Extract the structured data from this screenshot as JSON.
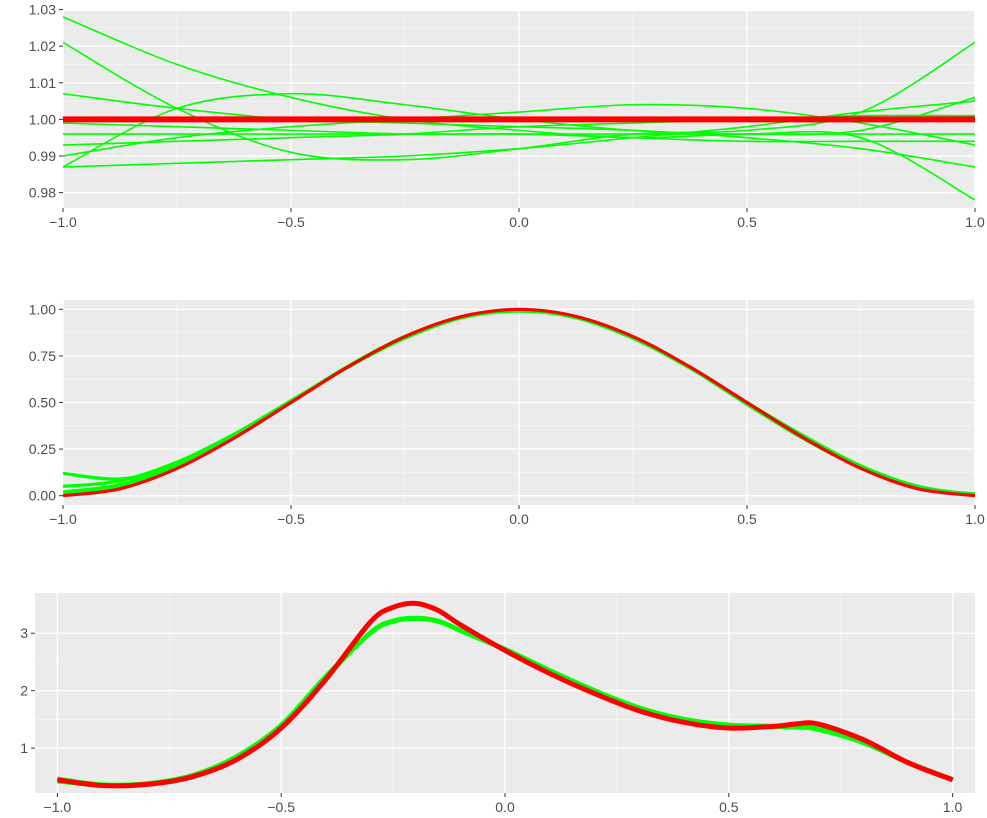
{
  "colors": {
    "panel_background": "#ebebeb",
    "grid_major": "#ffffff",
    "grid_minor": "#f5f5f5",
    "tick_text": "#4d4d4d",
    "tick_mark": "#333333",
    "truth": "#ff0000",
    "estimate": "#00ff00"
  },
  "chart_data": [
    {
      "type": "line",
      "title": "",
      "xlabel": "",
      "ylabel": "",
      "xlim": [
        -1.0,
        1.0
      ],
      "ylim": [
        0.9758,
        1.0296
      ],
      "x_ticks": [
        -1.0,
        -0.5,
        0.0,
        0.5,
        1.0
      ],
      "x_tick_labels": [
        "−1.0",
        "−0.5",
        "0.0",
        "0.5",
        "1.0"
      ],
      "y_ticks": [
        0.98,
        0.99,
        1.0,
        1.01,
        1.02,
        1.03
      ],
      "y_tick_labels": [
        "0.98",
        "0.99",
        "1.00",
        "1.01",
        "1.02",
        "1.03"
      ],
      "legend": "none",
      "series": [
        {
          "role": "truth",
          "x": [
            -1.0,
            1.0
          ],
          "y": [
            1.0,
            1.0
          ]
        },
        {
          "role": "estimate",
          "x": [
            -1.0,
            -0.75,
            -0.5,
            -0.25,
            0.0,
            0.25,
            0.5,
            0.75,
            1.0
          ],
          "y": [
            1.028,
            1.015,
            1.006,
            1.0,
            0.997,
            0.995,
            0.996,
            0.995,
            0.978
          ]
        },
        {
          "role": "estimate",
          "x": [
            -1.0,
            -0.75,
            -0.5,
            -0.25,
            0.0,
            0.25,
            0.5,
            0.75,
            1.0
          ],
          "y": [
            1.021,
            1.003,
            0.991,
            0.989,
            0.992,
            0.996,
            0.997,
            1.002,
            1.021
          ]
        },
        {
          "role": "estimate",
          "x": [
            -1.0,
            -0.75,
            -0.5,
            -0.25,
            0.0,
            0.25,
            0.5,
            0.75,
            1.0
          ],
          "y": [
            1.007,
            1.003,
            1.0,
            0.999,
            0.998,
            0.997,
            0.995,
            0.992,
            0.987
          ]
        },
        {
          "role": "estimate",
          "x": [
            -1.0,
            -0.75,
            -0.5,
            -0.25,
            0.0,
            0.25,
            0.5,
            0.75,
            1.0
          ],
          "y": [
            0.987,
            1.003,
            1.007,
            1.004,
            1.0,
            0.997,
            0.996,
            0.997,
            1.006
          ]
        },
        {
          "role": "estimate",
          "x": [
            -1.0,
            -0.75,
            -0.5,
            -0.25,
            0.0,
            0.25,
            0.5,
            0.75,
            1.0
          ],
          "y": [
            0.987,
            0.988,
            0.989,
            0.99,
            0.992,
            0.995,
            0.998,
            1.002,
            1.005
          ]
        },
        {
          "role": "estimate",
          "x": [
            -1.0,
            -0.75,
            -0.5,
            -0.25,
            0.0,
            0.25,
            0.5,
            0.75,
            1.0
          ],
          "y": [
            0.99,
            0.995,
            0.998,
            1.0,
            1.002,
            1.004,
            1.003,
            0.999,
            0.993
          ]
        },
        {
          "role": "estimate",
          "x": [
            -1.0,
            -0.75,
            -0.5,
            -0.25,
            0.0,
            0.25,
            0.5,
            0.75,
            1.0
          ],
          "y": [
            0.993,
            0.994,
            0.995,
            0.996,
            0.998,
            0.999,
            1.0,
            1.001,
            1.001
          ]
        },
        {
          "role": "estimate",
          "x": [
            -1.0,
            -0.75,
            -0.5,
            -0.25,
            0.0,
            0.25,
            0.5,
            0.75,
            1.0
          ],
          "y": [
            0.996,
            0.996,
            0.996,
            0.996,
            0.996,
            0.996,
            0.996,
            0.996,
            0.996
          ]
        },
        {
          "role": "estimate",
          "x": [
            -1.0,
            -0.75,
            -0.5,
            -0.25,
            0.0,
            0.25,
            0.5,
            0.75,
            1.0
          ],
          "y": [
            0.999,
            0.998,
            0.997,
            0.996,
            0.996,
            0.995,
            0.994,
            0.994,
            0.994
          ]
        }
      ]
    },
    {
      "type": "line",
      "title": "",
      "xlabel": "",
      "ylabel": "",
      "xlim": [
        -1.0,
        1.0
      ],
      "ylim": [
        -0.05,
        1.05
      ],
      "x_ticks": [
        -1.0,
        -0.5,
        0.0,
        0.5,
        1.0
      ],
      "x_tick_labels": [
        "−1.0",
        "−0.5",
        "0.0",
        "0.5",
        "1.0"
      ],
      "y_ticks": [
        0.0,
        0.25,
        0.5,
        0.75,
        1.0
      ],
      "y_tick_labels": [
        "0.00",
        "0.25",
        "0.50",
        "0.75",
        "1.00"
      ],
      "legend": "none",
      "series": [
        {
          "role": "truth",
          "x": [
            -1.0,
            -0.875,
            -0.75,
            -0.625,
            -0.5,
            -0.375,
            -0.25,
            -0.125,
            0.0,
            0.125,
            0.25,
            0.375,
            0.5,
            0.625,
            0.75,
            0.875,
            1.0
          ],
          "y": [
            0.0,
            0.037,
            0.146,
            0.309,
            0.5,
            0.691,
            0.854,
            0.962,
            1.0,
            0.962,
            0.854,
            0.691,
            0.5,
            0.309,
            0.146,
            0.037,
            0.0
          ]
        },
        {
          "role": "estimate",
          "x": [
            -1.0,
            -0.875,
            -0.75,
            -0.625,
            -0.5,
            -0.375,
            -0.25,
            -0.125,
            0.0,
            0.125,
            0.25,
            0.375,
            0.5,
            0.625,
            0.75,
            0.875,
            1.0
          ],
          "y": [
            0.12,
            0.09,
            0.16,
            0.31,
            0.5,
            0.69,
            0.85,
            0.96,
            0.995,
            0.955,
            0.845,
            0.69,
            0.5,
            0.32,
            0.16,
            0.05,
            0.005
          ]
        },
        {
          "role": "estimate",
          "x": [
            -1.0,
            -0.875,
            -0.75,
            -0.625,
            -0.5,
            -0.375,
            -0.25,
            -0.125,
            0.0,
            0.125,
            0.25,
            0.375,
            0.5,
            0.625,
            0.75,
            0.875,
            1.0
          ],
          "y": [
            0.05,
            0.08,
            0.18,
            0.33,
            0.51,
            0.69,
            0.845,
            0.955,
            0.99,
            0.955,
            0.845,
            0.685,
            0.495,
            0.31,
            0.155,
            0.045,
            0.01
          ]
        },
        {
          "role": "estimate",
          "x": [
            -1.0,
            -0.875,
            -0.75,
            -0.625,
            -0.5,
            -0.375,
            -0.25,
            -0.125,
            0.0,
            0.125,
            0.25,
            0.375,
            0.5,
            0.625,
            0.75,
            0.875,
            1.0
          ],
          "y": [
            0.02,
            0.06,
            0.165,
            0.32,
            0.505,
            0.69,
            0.85,
            0.96,
            0.995,
            0.96,
            0.85,
            0.685,
            0.495,
            0.305,
            0.15,
            0.04,
            0.005
          ]
        },
        {
          "role": "estimate",
          "x": [
            -1.0,
            -0.875,
            -0.75,
            -0.625,
            -0.5,
            -0.375,
            -0.25,
            -0.125,
            0.0,
            0.125,
            0.25,
            0.375,
            0.5,
            0.625,
            0.75,
            0.875,
            1.0
          ],
          "y": [
            0.005,
            0.045,
            0.155,
            0.315,
            0.505,
            0.695,
            0.855,
            0.96,
            0.995,
            0.955,
            0.845,
            0.685,
            0.49,
            0.305,
            0.15,
            0.045,
            0.0
          ]
        }
      ]
    },
    {
      "type": "line",
      "title": "",
      "xlabel": "",
      "ylabel": "",
      "xlim": [
        -1.05,
        1.05
      ],
      "ylim": [
        0.22,
        3.7
      ],
      "x_ticks": [
        -1.0,
        -0.5,
        0.0,
        0.5,
        1.0
      ],
      "x_tick_labels": [
        "−1.0",
        "−0.5",
        "0.0",
        "0.5",
        "1.0"
      ],
      "y_ticks": [
        1,
        2,
        3
      ],
      "y_tick_labels": [
        "1",
        "2",
        "3"
      ],
      "legend": "none",
      "series": [
        {
          "role": "truth",
          "x": [
            -1.0,
            -0.9,
            -0.8,
            -0.7,
            -0.6,
            -0.5,
            -0.4,
            -0.3,
            -0.25,
            -0.2,
            -0.15,
            -0.1,
            0.0,
            0.1,
            0.2,
            0.3,
            0.4,
            0.5,
            0.6,
            0.65,
            0.7,
            0.8,
            0.9,
            1.0
          ],
          "y": [
            0.45,
            0.35,
            0.37,
            0.5,
            0.8,
            1.35,
            2.2,
            3.2,
            3.45,
            3.52,
            3.4,
            3.15,
            2.7,
            2.3,
            1.95,
            1.65,
            1.45,
            1.35,
            1.38,
            1.42,
            1.42,
            1.15,
            0.75,
            0.45
          ]
        },
        {
          "role": "estimate",
          "x": [
            -1.0,
            -0.9,
            -0.8,
            -0.7,
            -0.6,
            -0.5,
            -0.4,
            -0.3,
            -0.25,
            -0.2,
            -0.15,
            -0.1,
            0.0,
            0.1,
            0.2,
            0.3,
            0.4,
            0.5,
            0.6,
            0.65,
            0.7,
            0.8,
            0.9,
            1.0
          ],
          "y": [
            0.45,
            0.36,
            0.38,
            0.52,
            0.85,
            1.4,
            2.25,
            3.0,
            3.2,
            3.25,
            3.2,
            3.05,
            2.72,
            2.35,
            2.0,
            1.7,
            1.5,
            1.4,
            1.38,
            1.37,
            1.33,
            1.1,
            0.75,
            0.45
          ]
        },
        {
          "role": "estimate",
          "x": [
            -1.0,
            -0.9,
            -0.8,
            -0.7,
            -0.6,
            -0.5,
            -0.4,
            -0.3,
            -0.25,
            -0.2,
            -0.15,
            -0.1,
            0.0,
            0.1,
            0.2,
            0.3,
            0.4,
            0.5,
            0.6,
            0.65,
            0.7,
            0.8,
            0.9,
            1.0
          ],
          "y": [
            0.42,
            0.35,
            0.37,
            0.51,
            0.83,
            1.38,
            2.22,
            3.02,
            3.22,
            3.27,
            3.22,
            3.06,
            2.73,
            2.36,
            2.01,
            1.71,
            1.51,
            1.41,
            1.39,
            1.38,
            1.34,
            1.11,
            0.76,
            0.46
          ]
        },
        {
          "role": "estimate",
          "x": [
            -1.0,
            -0.9,
            -0.8,
            -0.7,
            -0.6,
            -0.5,
            -0.4,
            -0.3,
            -0.25,
            -0.2,
            -0.15,
            -0.1,
            0.0,
            0.1,
            0.2,
            0.3,
            0.4,
            0.5,
            0.6,
            0.65,
            0.7,
            0.8,
            0.9,
            1.0
          ],
          "y": [
            0.47,
            0.37,
            0.39,
            0.53,
            0.86,
            1.41,
            2.26,
            3.01,
            3.21,
            3.26,
            3.21,
            3.04,
            2.71,
            2.34,
            1.99,
            1.69,
            1.49,
            1.39,
            1.37,
            1.36,
            1.32,
            1.09,
            0.74,
            0.44
          ]
        }
      ]
    }
  ]
}
